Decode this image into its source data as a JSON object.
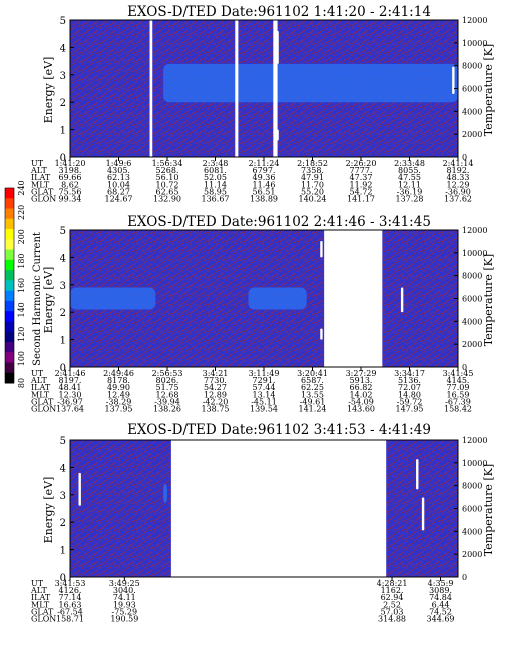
{
  "figure": {
    "colorbar": {
      "label": "Second Harmonic Current",
      "ticks": [
        "240",
        "220",
        "200",
        "180",
        "160",
        "140",
        "120",
        "100",
        "80"
      ],
      "colors": [
        "#ff0000",
        "#ff4000",
        "#ff8000",
        "#ffc000",
        "#ffff00",
        "#ffff40",
        "#80ff40",
        "#00ff00",
        "#00c060",
        "#00c0c0",
        "#0080ff",
        "#0040ff",
        "#0000ff",
        "#0000b0",
        "#000080",
        "#400080",
        "#800080",
        "#400040",
        "#000000"
      ]
    },
    "colors": {
      "field_blue": "#3232c8",
      "speckle": "#8a2a55",
      "band": "#2a6cf0",
      "gap": "#ffffff"
    }
  },
  "chart_data": [
    {
      "type": "heatmap",
      "title": "EXOS-D/TED   Date:961102  1:41:20 - 2:41:14",
      "ylabel": "Energy [eV]",
      "y2label": "Temperature [K]",
      "ylim": [
        0,
        5
      ],
      "y2lim": [
        0,
        12000
      ],
      "yticks": [
        "0",
        "1",
        "2",
        "3",
        "4",
        "5"
      ],
      "y2ticks": [
        "0",
        "2000",
        "4000",
        "6000",
        "8000",
        "10000",
        "12000"
      ],
      "bands": [
        {
          "from": 0.24,
          "to": 1.0,
          "e_lo": 2.0,
          "e_hi": 3.4
        }
      ],
      "gaps": [
        [
          0.205,
          0.212
        ],
        [
          0.426,
          0.434
        ],
        [
          0.524,
          0.535
        ]
      ],
      "streaks": [
        {
          "x": 0.535,
          "e_lo": 3.4,
          "e_hi": 4.6
        },
        {
          "x": 0.535,
          "e_lo": 0.6,
          "e_hi": 1.0
        },
        {
          "x": 0.988,
          "e_lo": 2.3,
          "e_hi": 3.3
        }
      ],
      "info_labels": [
        "UT",
        "ALT",
        "ILAT",
        "MLT",
        "GLAT",
        "GLON"
      ],
      "info_columns": [
        {
          "x": 0.0,
          "values": [
            "1:41:20",
            "3198.",
            "69.66",
            "8.62",
            "75.56",
            "99.34"
          ]
        },
        {
          "x": 0.125,
          "values": [
            "1:49:6",
            "4305.",
            "62.13",
            "10.04",
            "68.27",
            "124.67"
          ]
        },
        {
          "x": 0.25,
          "values": [
            "1:56:34",
            "5268.",
            "56.10",
            "10.72",
            "62.65",
            "132.90"
          ]
        },
        {
          "x": 0.375,
          "values": [
            "2:3:48",
            "6081.",
            "52.05",
            "11.14",
            "58.95",
            "136.67"
          ]
        },
        {
          "x": 0.5,
          "values": [
            "2:11:24",
            "6797.",
            "49.36",
            "11.46",
            "56.51",
            "138.89"
          ]
        },
        {
          "x": 0.625,
          "values": [
            "2:18:52",
            "7358.",
            "47.91",
            "11.70",
            "55.20",
            "140.24"
          ]
        },
        {
          "x": 0.75,
          "values": [
            "2:26:20",
            "7777.",
            "47.37",
            "11.92",
            "54.72",
            "141.17"
          ]
        },
        {
          "x": 0.875,
          "values": [
            "2:33:48",
            "8055.",
            "47.55",
            "12.11",
            "-36.19",
            "137.28"
          ]
        },
        {
          "x": 1.0,
          "values": [
            "2:41:14",
            "8192.",
            "48.33",
            "12.29",
            "-36.90",
            "137.62"
          ]
        }
      ]
    },
    {
      "type": "heatmap",
      "title": "EXOS-D/TED   Date:961102  2:41:46 - 3:41:45",
      "ylabel": "Energy [eV]",
      "y2label": "Temperature [K]",
      "ylim": [
        0,
        5
      ],
      "y2lim": [
        0,
        12000
      ],
      "yticks": [
        "0",
        "1",
        "2",
        "3",
        "4",
        "5"
      ],
      "y2ticks": [
        "0",
        "2000",
        "4000",
        "6000",
        "8000",
        "10000",
        "12000"
      ],
      "bands": [
        {
          "from": 0.0,
          "to": 0.22,
          "e_lo": 2.1,
          "e_hi": 2.9
        },
        {
          "from": 0.46,
          "to": 0.61,
          "e_lo": 2.1,
          "e_hi": 2.9
        }
      ],
      "gaps": [
        [
          0.655,
          0.805
        ]
      ],
      "streaks": [
        {
          "x": 0.648,
          "e_lo": 4.0,
          "e_hi": 4.6
        },
        {
          "x": 0.648,
          "e_lo": 1.0,
          "e_hi": 1.4
        },
        {
          "x": 0.856,
          "e_lo": 2.0,
          "e_hi": 2.9
        }
      ],
      "info_labels": [
        "UT",
        "ALT",
        "ILAT",
        "MLT",
        "GLAT",
        "GLON"
      ],
      "info_columns": [
        {
          "x": 0.0,
          "values": [
            "2:41:46",
            "8197.",
            "48.41",
            "12.30",
            "-36.97",
            "137.64"
          ]
        },
        {
          "x": 0.125,
          "values": [
            "2:49:46",
            "8178.",
            "49.90",
            "12.49",
            "-38.29",
            "137.95"
          ]
        },
        {
          "x": 0.25,
          "values": [
            "2:56:53",
            "8026.",
            "51.75",
            "12.68",
            "-39.94",
            "138.26"
          ]
        },
        {
          "x": 0.375,
          "values": [
            "3:4:21",
            "7730.",
            "54.27",
            "12.89",
            "-42.20",
            "138.75"
          ]
        },
        {
          "x": 0.5,
          "values": [
            "3:11:49",
            "7291.",
            "57.44",
            "13.14",
            "-45.11",
            "139.54"
          ]
        },
        {
          "x": 0.625,
          "values": [
            "3:20:41",
            "6587.",
            "62.25",
            "13.55",
            "-49.61",
            "141.24"
          ]
        },
        {
          "x": 0.75,
          "values": [
            "3:27:29",
            "5913.",
            "66.82",
            "14.02",
            "-54.09",
            "143.60"
          ]
        },
        {
          "x": 0.875,
          "values": [
            "3:34:17",
            "5136.",
            "72.07",
            "14.80",
            "-59.72",
            "147.95"
          ]
        },
        {
          "x": 1.0,
          "values": [
            "3:41:45",
            "4145.",
            "77.09",
            "16.59",
            "-67.39",
            "158.42"
          ]
        }
      ]
    },
    {
      "type": "heatmap",
      "title": "EXOS-D/TED   Date:961102  3:41:53 - 4:41:49",
      "ylabel": "Energy [eV]",
      "y2label": "Temperature [K]",
      "ylim": [
        0,
        5
      ],
      "y2lim": [
        0,
        12000
      ],
      "yticks": [
        "0",
        "1",
        "2",
        "3",
        "4",
        "5"
      ],
      "y2ticks": [
        "0",
        "2000",
        "4000",
        "6000",
        "8000",
        "10000",
        "12000"
      ],
      "bands": [
        {
          "from": 0.24,
          "to": 0.25,
          "e_lo": 2.7,
          "e_hi": 3.4
        }
      ],
      "gaps": [
        [
          0.26,
          0.815
        ]
      ],
      "streaks": [
        {
          "x": 0.025,
          "e_lo": 2.6,
          "e_hi": 3.8
        },
        {
          "x": 0.895,
          "e_lo": 3.2,
          "e_hi": 4.3
        },
        {
          "x": 0.91,
          "e_lo": 1.7,
          "e_hi": 2.9
        }
      ],
      "info_labels": [
        "UT",
        "ALT",
        "ILAT",
        "MLT",
        "GLAT",
        "GLON"
      ],
      "info_columns": [
        {
          "x": 0.0,
          "values": [
            "3:41:53",
            "4126.",
            "77.14",
            "16.63",
            "-67.54",
            "158.71"
          ]
        },
        {
          "x": 0.14,
          "values": [
            "3:49:25",
            "3040.",
            "74.11",
            "19.93",
            "-75.29",
            "190.59"
          ]
        },
        {
          "x": 0.83,
          "values": [
            "4:28:21",
            "1162.",
            "62.94",
            "2.52",
            "57.03",
            "314.88"
          ]
        },
        {
          "x": 0.955,
          "values": [
            "4:35:9",
            "3089.",
            "74.84",
            "6.44",
            "74.52",
            "344.69"
          ]
        }
      ]
    }
  ]
}
